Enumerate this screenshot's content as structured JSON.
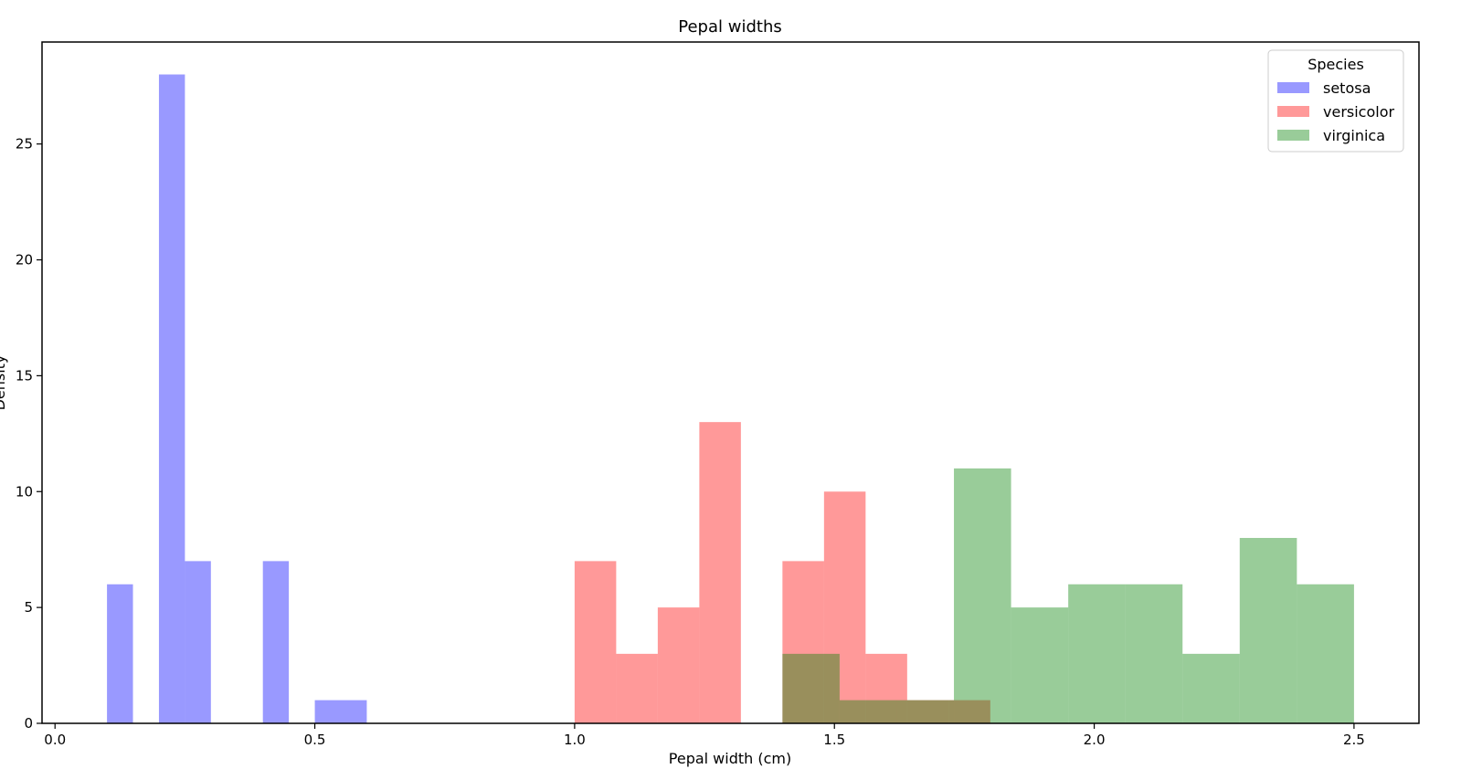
{
  "chart_data": {
    "type": "histogram",
    "title": "Pepal widths",
    "xlabel": "Pepal width (cm)",
    "ylabel": "Density",
    "xlim": [
      -0.025,
      2.625
    ],
    "ylim": [
      0,
      29.4
    ],
    "x_ticks": [
      0.0,
      0.5,
      1.0,
      1.5,
      2.0,
      2.5
    ],
    "x_tick_labels": [
      "0.0",
      "0.5",
      "1.0",
      "1.5",
      "2.0",
      "2.5"
    ],
    "y_ticks": [
      0,
      5,
      10,
      15,
      20,
      25
    ],
    "y_tick_labels": [
      "0",
      "5",
      "10",
      "15",
      "20",
      "25"
    ],
    "grid": false,
    "legend": {
      "title": "Species",
      "placement": "top-right"
    },
    "series": [
      {
        "name": "setosa",
        "color": "#0000ff",
        "alpha": 0.4,
        "bins": [
          {
            "x0": 0.1,
            "x1": 0.15,
            "count": 6
          },
          {
            "x0": 0.15,
            "x1": 0.2,
            "count": 0
          },
          {
            "x0": 0.2,
            "x1": 0.25,
            "count": 28
          },
          {
            "x0": 0.25,
            "x1": 0.3,
            "count": 7
          },
          {
            "x0": 0.3,
            "x1": 0.35,
            "count": 0
          },
          {
            "x0": 0.35,
            "x1": 0.4,
            "count": 0
          },
          {
            "x0": 0.4,
            "x1": 0.45,
            "count": 7
          },
          {
            "x0": 0.45,
            "x1": 0.5,
            "count": 0
          },
          {
            "x0": 0.5,
            "x1": 0.55,
            "count": 1
          },
          {
            "x0": 0.55,
            "x1": 0.6,
            "count": 1
          }
        ]
      },
      {
        "name": "versicolor",
        "color": "#ff0000",
        "alpha": 0.4,
        "bins": [
          {
            "x0": 1.0,
            "x1": 1.08,
            "count": 7
          },
          {
            "x0": 1.08,
            "x1": 1.16,
            "count": 3
          },
          {
            "x0": 1.16,
            "x1": 1.24,
            "count": 5
          },
          {
            "x0": 1.24,
            "x1": 1.32,
            "count": 13
          },
          {
            "x0": 1.32,
            "x1": 1.4,
            "count": 0
          },
          {
            "x0": 1.4,
            "x1": 1.48,
            "count": 7
          },
          {
            "x0": 1.48,
            "x1": 1.56,
            "count": 10
          },
          {
            "x0": 1.56,
            "x1": 1.64,
            "count": 3
          },
          {
            "x0": 1.64,
            "x1": 1.72,
            "count": 1
          },
          {
            "x0": 1.72,
            "x1": 1.8,
            "count": 1
          }
        ]
      },
      {
        "name": "virginica",
        "color": "#008000",
        "alpha": 0.4,
        "bins": [
          {
            "x0": 1.4,
            "x1": 1.51,
            "count": 3
          },
          {
            "x0": 1.51,
            "x1": 1.62,
            "count": 1
          },
          {
            "x0": 1.62,
            "x1": 1.73,
            "count": 1
          },
          {
            "x0": 1.73,
            "x1": 1.84,
            "count": 11
          },
          {
            "x0": 1.84,
            "x1": 1.95,
            "count": 5
          },
          {
            "x0": 1.95,
            "x1": 2.06,
            "count": 6
          },
          {
            "x0": 2.06,
            "x1": 2.17,
            "count": 6
          },
          {
            "x0": 2.17,
            "x1": 2.28,
            "count": 3
          },
          {
            "x0": 2.28,
            "x1": 2.39,
            "count": 8
          },
          {
            "x0": 2.39,
            "x1": 2.5,
            "count": 6
          }
        ]
      }
    ]
  }
}
